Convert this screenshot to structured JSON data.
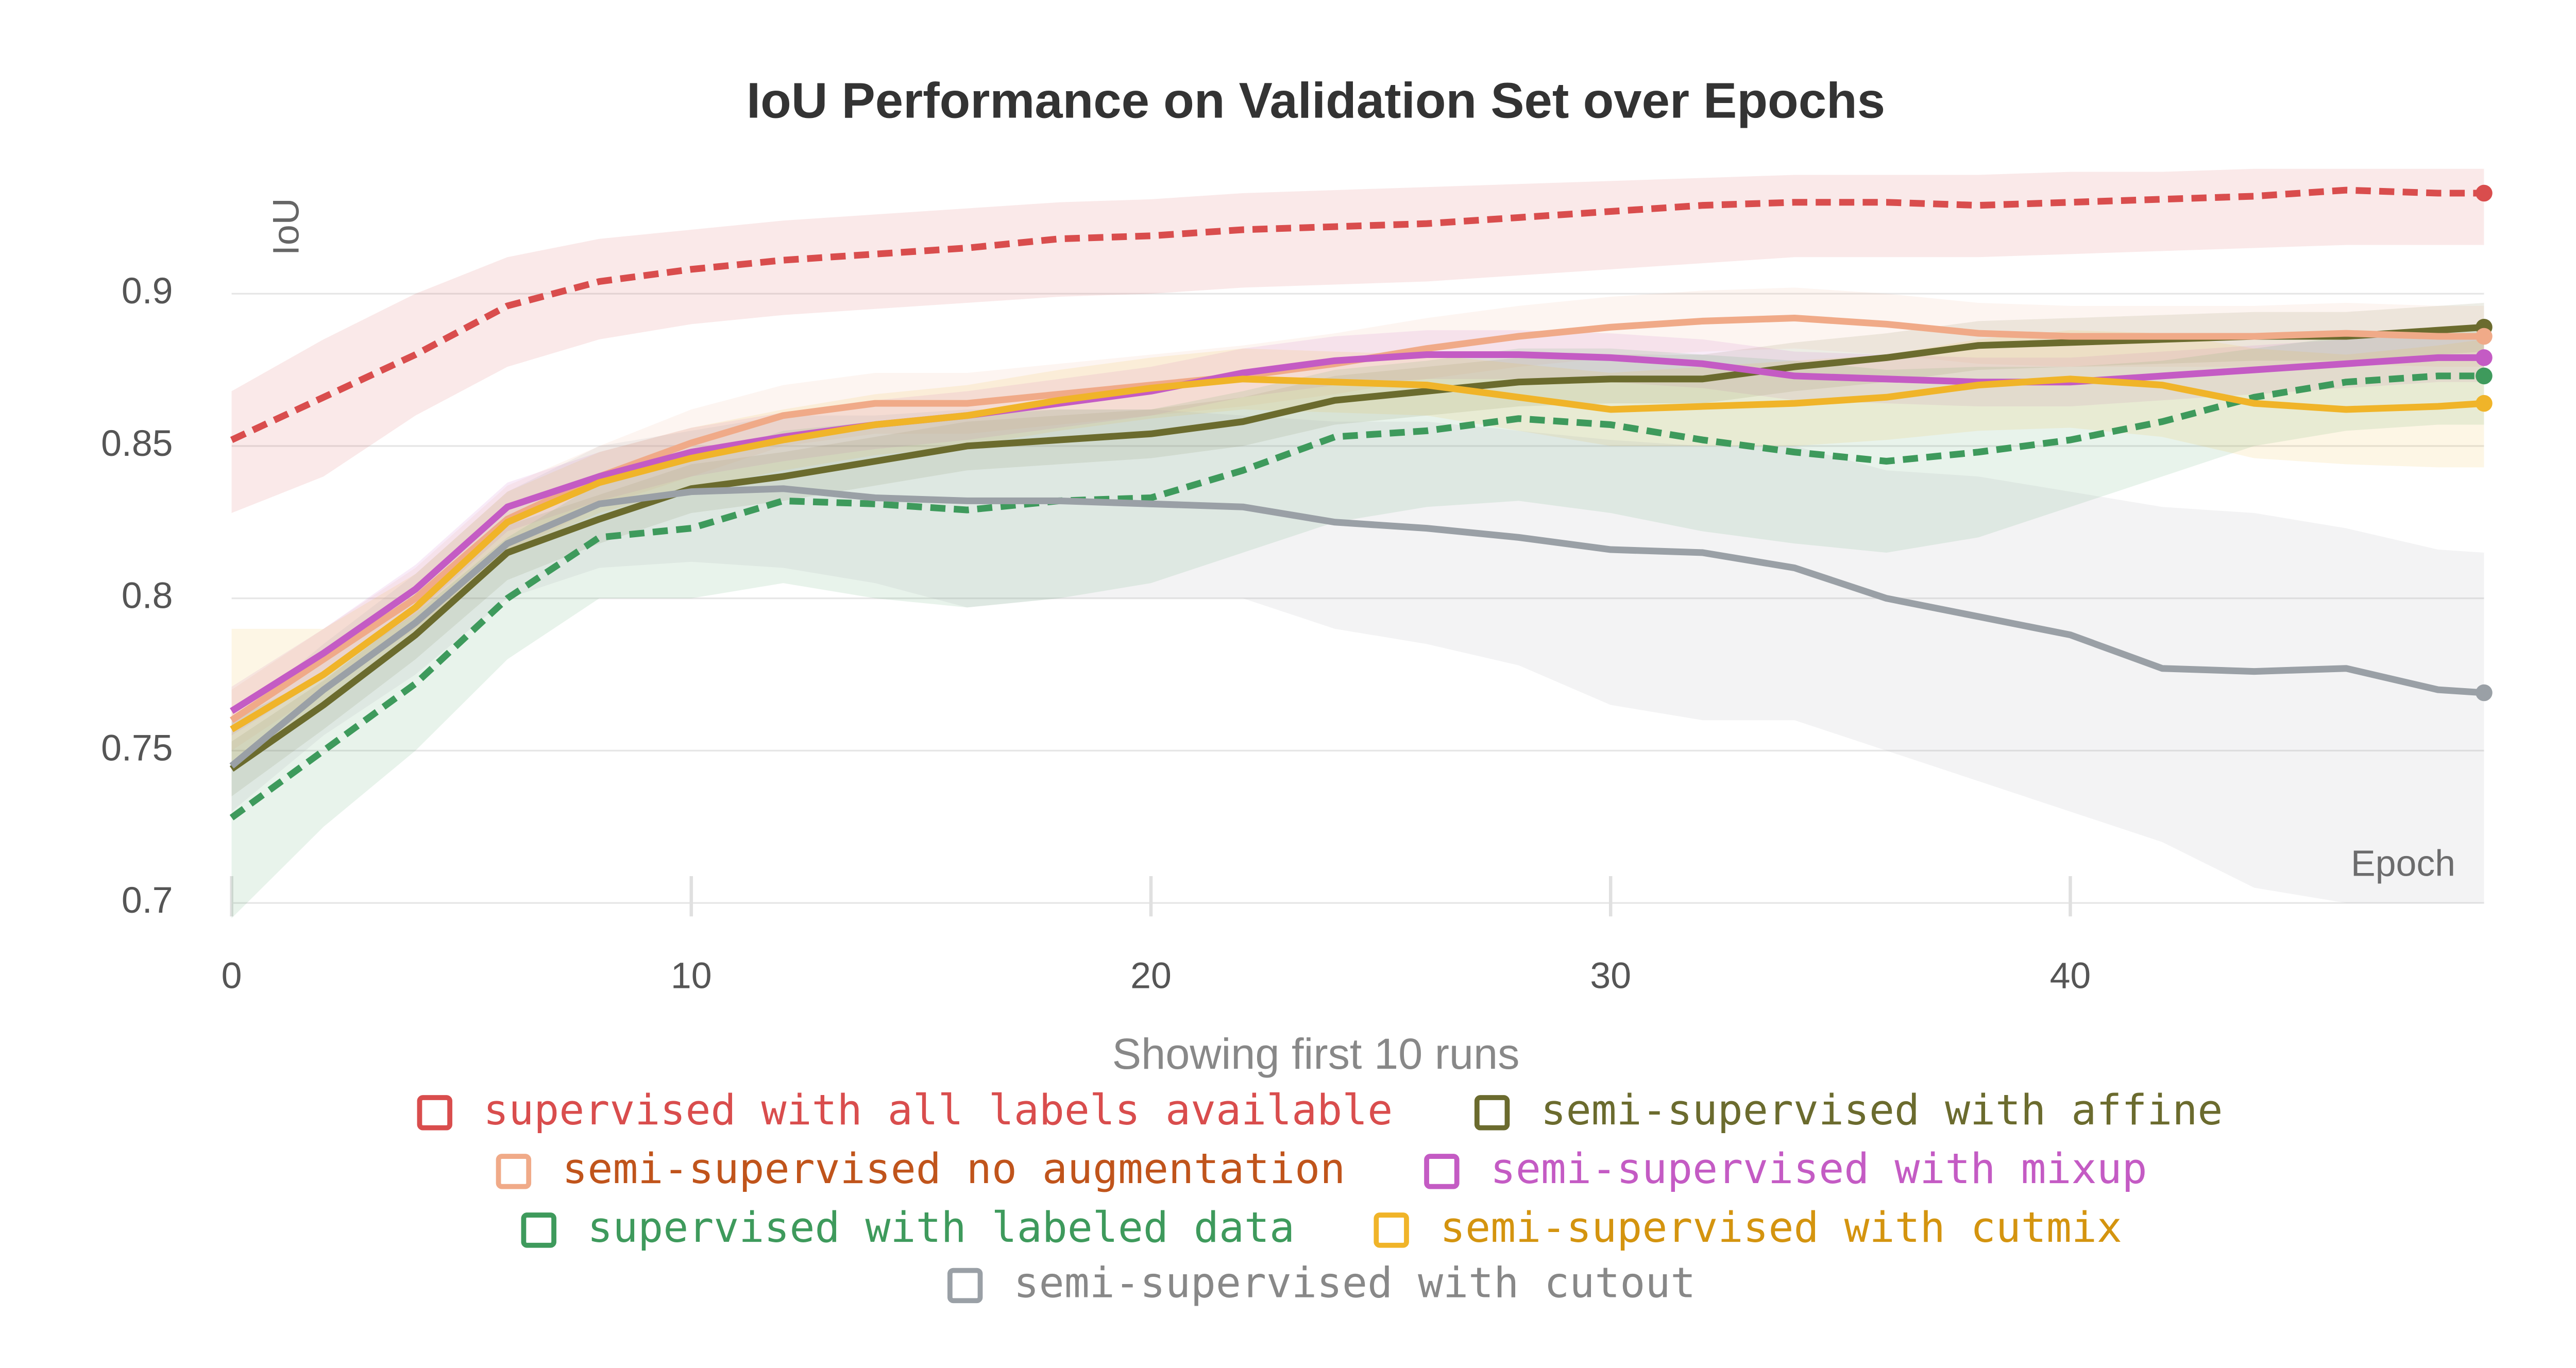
{
  "chart_data": {
    "type": "line",
    "title": "IoU Performance on Validation Set over Epochs",
    "note": "Showing first 10 runs",
    "x_label": "Epoch",
    "y_label": "IoU",
    "xlim": [
      0,
      49
    ],
    "xticks": [
      0,
      10,
      20,
      30,
      40
    ],
    "ylim": [
      0.7,
      0.944
    ],
    "yticks": [
      0.7,
      0.75,
      0.8,
      0.85,
      0.9
    ],
    "grid": true,
    "x": [
      0,
      2,
      4,
      6,
      8,
      10,
      12,
      14,
      16,
      18,
      20,
      22,
      24,
      26,
      28,
      30,
      32,
      34,
      36,
      38,
      40,
      42,
      44,
      46,
      48,
      49
    ],
    "series": [
      {
        "name": "supervised with all labels available",
        "color": "#d94d4d",
        "text_color": "#d94d4d",
        "dashed": true,
        "values": [
          0.852,
          0.866,
          0.88,
          0.896,
          0.904,
          0.908,
          0.911,
          0.913,
          0.915,
          0.918,
          0.919,
          0.921,
          0.922,
          0.923,
          0.925,
          0.927,
          0.929,
          0.93,
          0.93,
          0.929,
          0.93,
          0.931,
          0.932,
          0.934,
          0.933,
          0.933
        ],
        "band_low": [
          0.828,
          0.84,
          0.86,
          0.876,
          0.885,
          0.89,
          0.893,
          0.895,
          0.897,
          0.899,
          0.9,
          0.902,
          0.903,
          0.904,
          0.906,
          0.908,
          0.91,
          0.912,
          0.912,
          0.912,
          0.913,
          0.914,
          0.915,
          0.916,
          0.916,
          0.916
        ],
        "band_high": [
          0.868,
          0.885,
          0.9,
          0.912,
          0.918,
          0.921,
          0.924,
          0.926,
          0.928,
          0.93,
          0.931,
          0.933,
          0.934,
          0.935,
          0.936,
          0.937,
          0.938,
          0.939,
          0.939,
          0.939,
          0.94,
          0.94,
          0.941,
          0.941,
          0.941,
          0.941
        ]
      },
      {
        "name": "semi-supervised with affine",
        "color": "#6b6b2e",
        "text_color": "#6b6b2e",
        "dashed": false,
        "values": [
          0.744,
          0.765,
          0.788,
          0.815,
          0.826,
          0.836,
          0.84,
          0.845,
          0.85,
          0.852,
          0.854,
          0.858,
          0.865,
          0.868,
          0.871,
          0.872,
          0.872,
          0.876,
          0.879,
          0.883,
          0.884,
          0.885,
          0.886,
          0.886,
          0.888,
          0.889
        ],
        "band_low": [
          0.735,
          0.757,
          0.78,
          0.806,
          0.818,
          0.828,
          0.832,
          0.837,
          0.842,
          0.844,
          0.846,
          0.85,
          0.857,
          0.86,
          0.863,
          0.864,
          0.864,
          0.868,
          0.871,
          0.875,
          0.876,
          0.877,
          0.878,
          0.878,
          0.88,
          0.881
        ],
        "band_high": [
          0.753,
          0.773,
          0.796,
          0.824,
          0.834,
          0.844,
          0.848,
          0.853,
          0.858,
          0.86,
          0.862,
          0.866,
          0.873,
          0.876,
          0.879,
          0.88,
          0.88,
          0.884,
          0.887,
          0.891,
          0.892,
          0.893,
          0.894,
          0.894,
          0.896,
          0.897
        ]
      },
      {
        "name": "semi-supervised no augmentation",
        "color": "#f0aa88",
        "text_color": "#c0541b",
        "dashed": false,
        "values": [
          0.76,
          0.78,
          0.8,
          0.826,
          0.84,
          0.851,
          0.86,
          0.864,
          0.864,
          0.867,
          0.87,
          0.873,
          0.877,
          0.882,
          0.886,
          0.889,
          0.891,
          0.892,
          0.89,
          0.887,
          0.886,
          0.886,
          0.886,
          0.887,
          0.886,
          0.886
        ],
        "band_low": [
          0.75,
          0.77,
          0.79,
          0.815,
          0.83,
          0.84,
          0.85,
          0.854,
          0.854,
          0.857,
          0.86,
          0.863,
          0.867,
          0.872,
          0.876,
          0.879,
          0.881,
          0.882,
          0.88,
          0.877,
          0.876,
          0.876,
          0.876,
          0.877,
          0.876,
          0.876
        ],
        "band_high": [
          0.77,
          0.79,
          0.81,
          0.837,
          0.85,
          0.862,
          0.87,
          0.874,
          0.874,
          0.877,
          0.88,
          0.883,
          0.887,
          0.892,
          0.896,
          0.899,
          0.901,
          0.902,
          0.9,
          0.897,
          0.896,
          0.896,
          0.896,
          0.897,
          0.896,
          0.896
        ]
      },
      {
        "name": "semi-supervised with mixup",
        "color": "#c45bc4",
        "text_color": "#c45bc4",
        "dashed": false,
        "values": [
          0.763,
          0.782,
          0.803,
          0.83,
          0.84,
          0.848,
          0.853,
          0.857,
          0.86,
          0.864,
          0.868,
          0.874,
          0.878,
          0.88,
          0.88,
          0.879,
          0.877,
          0.873,
          0.872,
          0.871,
          0.871,
          0.873,
          0.875,
          0.877,
          0.879,
          0.879
        ],
        "band_low": [
          0.755,
          0.774,
          0.795,
          0.822,
          0.832,
          0.84,
          0.845,
          0.849,
          0.852,
          0.856,
          0.86,
          0.866,
          0.87,
          0.872,
          0.872,
          0.871,
          0.869,
          0.865,
          0.864,
          0.863,
          0.863,
          0.865,
          0.867,
          0.869,
          0.871,
          0.871
        ],
        "band_high": [
          0.771,
          0.79,
          0.811,
          0.838,
          0.848,
          0.856,
          0.861,
          0.865,
          0.868,
          0.872,
          0.876,
          0.882,
          0.886,
          0.888,
          0.888,
          0.887,
          0.885,
          0.881,
          0.88,
          0.879,
          0.879,
          0.881,
          0.883,
          0.885,
          0.887,
          0.887
        ]
      },
      {
        "name": "supervised with labeled data",
        "color": "#3e9a5c",
        "text_color": "#3e9a5c",
        "dashed": true,
        "values": [
          0.728,
          0.75,
          0.772,
          0.8,
          0.82,
          0.823,
          0.832,
          0.831,
          0.829,
          0.832,
          0.833,
          0.842,
          0.853,
          0.855,
          0.859,
          0.857,
          0.852,
          0.848,
          0.845,
          0.848,
          0.852,
          0.858,
          0.866,
          0.871,
          0.873,
          0.873
        ],
        "band_low": [
          0.695,
          0.725,
          0.75,
          0.78,
          0.8,
          0.8,
          0.805,
          0.8,
          0.797,
          0.8,
          0.805,
          0.815,
          0.825,
          0.83,
          0.832,
          0.828,
          0.822,
          0.818,
          0.815,
          0.82,
          0.83,
          0.84,
          0.85,
          0.855,
          0.857,
          0.857
        ],
        "band_high": [
          0.76,
          0.775,
          0.795,
          0.82,
          0.838,
          0.845,
          0.855,
          0.858,
          0.86,
          0.862,
          0.862,
          0.868,
          0.875,
          0.878,
          0.882,
          0.882,
          0.88,
          0.878,
          0.875,
          0.876,
          0.876,
          0.878,
          0.882,
          0.886,
          0.888,
          0.888
        ]
      },
      {
        "name": "semi-supervised with cutmix",
        "color": "#f0b429",
        "text_color": "#d4940f",
        "dashed": false,
        "values": [
          0.757,
          0.775,
          0.797,
          0.825,
          0.838,
          0.846,
          0.852,
          0.857,
          0.86,
          0.865,
          0.869,
          0.872,
          0.871,
          0.87,
          0.866,
          0.862,
          0.863,
          0.864,
          0.866,
          0.87,
          0.872,
          0.87,
          0.864,
          0.862,
          0.863,
          0.864
        ],
        "band_low": [
          0.745,
          0.765,
          0.787,
          0.815,
          0.828,
          0.836,
          0.842,
          0.847,
          0.85,
          0.855,
          0.859,
          0.862,
          0.861,
          0.86,
          0.855,
          0.85,
          0.85,
          0.85,
          0.852,
          0.855,
          0.856,
          0.853,
          0.846,
          0.844,
          0.843,
          0.843
        ],
        "band_high": [
          0.79,
          0.79,
          0.808,
          0.835,
          0.848,
          0.856,
          0.862,
          0.867,
          0.87,
          0.875,
          0.879,
          0.882,
          0.881,
          0.88,
          0.877,
          0.874,
          0.876,
          0.878,
          0.88,
          0.885,
          0.888,
          0.887,
          0.882,
          0.88,
          0.883,
          0.885
        ]
      },
      {
        "name": "semi-supervised with cutout",
        "color": "#9aa0a6",
        "text_color": "#888888",
        "dashed": false,
        "values": [
          0.745,
          0.77,
          0.792,
          0.818,
          0.831,
          0.835,
          0.836,
          0.833,
          0.832,
          0.832,
          0.831,
          0.83,
          0.825,
          0.823,
          0.82,
          0.816,
          0.815,
          0.81,
          0.8,
          0.794,
          0.788,
          0.777,
          0.776,
          0.777,
          0.77,
          0.769
        ],
        "band_low": [
          0.73,
          0.755,
          0.775,
          0.8,
          0.81,
          0.812,
          0.81,
          0.805,
          0.797,
          0.8,
          0.8,
          0.8,
          0.79,
          0.785,
          0.778,
          0.765,
          0.76,
          0.76,
          0.75,
          0.74,
          0.73,
          0.72,
          0.705,
          0.7,
          0.7,
          0.7
        ],
        "band_high": [
          0.76,
          0.785,
          0.808,
          0.835,
          0.85,
          0.855,
          0.86,
          0.86,
          0.862,
          0.862,
          0.862,
          0.86,
          0.858,
          0.858,
          0.855,
          0.852,
          0.85,
          0.85,
          0.842,
          0.84,
          0.835,
          0.83,
          0.828,
          0.823,
          0.816,
          0.815
        ]
      }
    ]
  }
}
